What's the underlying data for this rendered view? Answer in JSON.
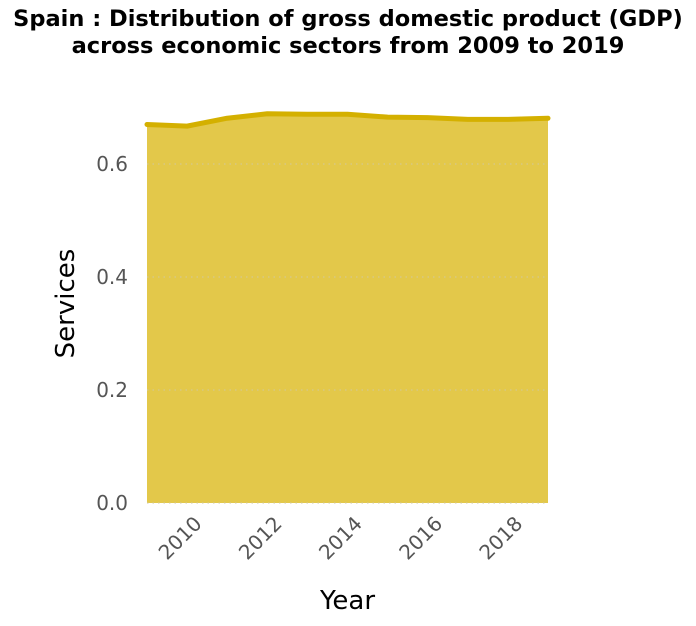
{
  "chart_data": {
    "type": "area",
    "title": "Spain : Distribution of gross domestic product (GDP) across economic sectors from 2009 to 2019",
    "xlabel": "Year",
    "ylabel": "Services",
    "x": [
      2009,
      2010,
      2011,
      2012,
      2013,
      2014,
      2015,
      2016,
      2017,
      2018,
      2019
    ],
    "series": [
      {
        "values": [
          0.67,
          0.667,
          0.681,
          0.689,
          0.688,
          0.688,
          0.683,
          0.682,
          0.679,
          0.679,
          0.681
        ]
      }
    ],
    "x_ticks": [
      "2010",
      "2012",
      "2014",
      "2016",
      "2018"
    ],
    "y_ticks": [
      "0.0",
      "0.2",
      "0.4",
      "0.6"
    ],
    "xlim": [
      2009,
      2019
    ],
    "ylim": [
      0,
      0.6
    ],
    "grid": "horizontal dotted",
    "colors": {
      "fill": "#e3c84a",
      "line": "#d4b000",
      "grid": "#d0c7a0",
      "tick_text": "#555555"
    }
  }
}
